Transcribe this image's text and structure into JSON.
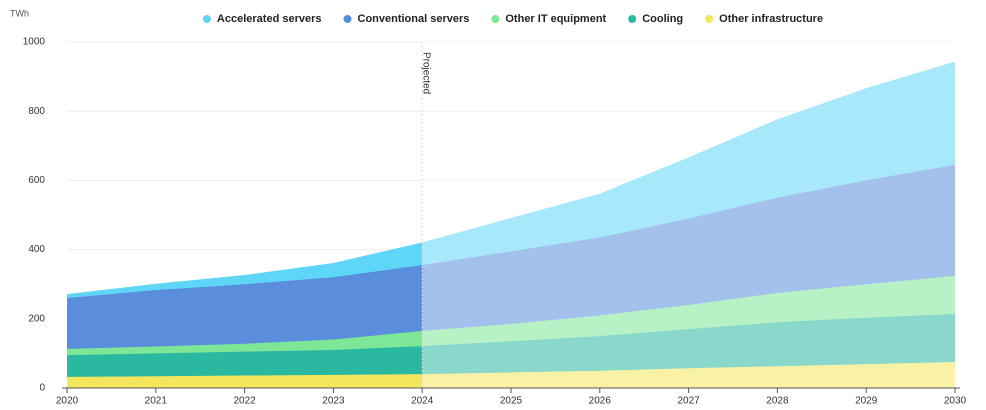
{
  "chart_data": {
    "type": "stacked_area",
    "ylabel": "TWh",
    "annotation": "Projected",
    "projection_start": 2024,
    "x": [
      2020,
      2021,
      2022,
      2023,
      2024,
      2025,
      2026,
      2027,
      2028,
      2029,
      2030
    ],
    "xlim": [
      2020,
      2030
    ],
    "xticks": [
      2020,
      2021,
      2022,
      2023,
      2024,
      2025,
      2026,
      2027,
      2028,
      2029,
      2030
    ],
    "ylim": [
      0,
      1000
    ],
    "yticks": [
      0,
      200,
      400,
      600,
      800,
      1000
    ],
    "grid": true,
    "legend": "top",
    "series": [
      {
        "name": "Other infrastructure",
        "color": "#f3e65e",
        "values": [
          32,
          34,
          36,
          38,
          40,
          45,
          50,
          57,
          63,
          69,
          75
        ]
      },
      {
        "name": "Cooling",
        "color": "#2bb8a0",
        "values": [
          63,
          66,
          69,
          72,
          81,
          90,
          100,
          113,
          127,
          134,
          139
        ]
      },
      {
        "name": "Other IT equipment",
        "color": "#7de697",
        "values": [
          18,
          20,
          23,
          30,
          44,
          50,
          60,
          70,
          85,
          97,
          110
        ]
      },
      {
        "name": "Conventional servers",
        "color": "#5a8ddc",
        "values": [
          147,
          163,
          172,
          180,
          190,
          210,
          225,
          250,
          275,
          300,
          321
        ]
      },
      {
        "name": "Accelerated servers",
        "color": "#5fd6f7",
        "values": [
          10,
          17,
          25,
          40,
          64,
          95,
          125,
          175,
          225,
          265,
          297
        ]
      }
    ]
  }
}
